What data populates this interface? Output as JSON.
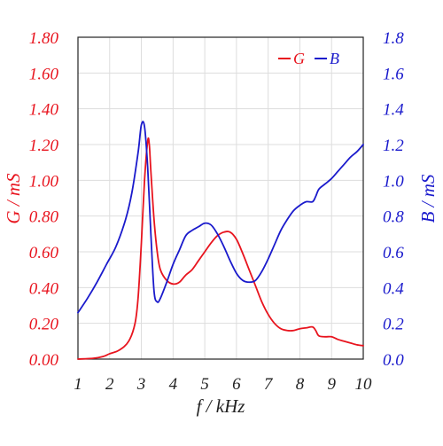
{
  "chart_data": {
    "type": "line",
    "title": "",
    "xlabel": "f / kHz",
    "ylabel_left": "G / mS",
    "ylabel_right": "B / mS",
    "xlim": [
      1,
      10
    ],
    "ylim_left": [
      0,
      1.8
    ],
    "ylim_right": [
      0,
      1.8
    ],
    "grid": true,
    "legend_position": "top-right",
    "x_ticks": [
      "1",
      "2",
      "3",
      "4",
      "5",
      "6",
      "7",
      "8",
      "9",
      "10"
    ],
    "y_left_ticks": [
      "0.00",
      "0.20",
      "0.40",
      "0.60",
      "0.80",
      "1.00",
      "1.20",
      "1.40",
      "1.60",
      "1.80"
    ],
    "y_right_ticks": [
      "0.0",
      "0.2",
      "0.4",
      "0.6",
      "0.8",
      "1.0",
      "1.2",
      "1.4",
      "1.6",
      "1.8"
    ],
    "colors": {
      "G": "#e8141e",
      "B": "#1a1acc",
      "grid": "#dddddd",
      "axis": "#222222"
    },
    "series": [
      {
        "name": "G",
        "axis": "left",
        "x": [
          1.0,
          1.5,
          1.8,
          2.0,
          2.3,
          2.6,
          2.8,
          2.9,
          3.0,
          3.1,
          3.2,
          3.25,
          3.3,
          3.4,
          3.5,
          3.6,
          3.8,
          4.0,
          4.2,
          4.4,
          4.6,
          4.8,
          5.0,
          5.2,
          5.4,
          5.6,
          5.8,
          6.0,
          6.2,
          6.4,
          6.6,
          6.8,
          7.0,
          7.2,
          7.4,
          7.6,
          7.8,
          8.0,
          8.2,
          8.4,
          8.5,
          8.6,
          8.8,
          9.0,
          9.2,
          9.4,
          9.6,
          9.8,
          10.0
        ],
        "y": [
          0.0,
          0.005,
          0.015,
          0.03,
          0.05,
          0.1,
          0.2,
          0.35,
          0.65,
          1.0,
          1.22,
          1.2,
          1.05,
          0.78,
          0.6,
          0.5,
          0.44,
          0.42,
          0.43,
          0.47,
          0.5,
          0.55,
          0.6,
          0.65,
          0.69,
          0.71,
          0.71,
          0.67,
          0.59,
          0.5,
          0.41,
          0.32,
          0.25,
          0.2,
          0.17,
          0.16,
          0.16,
          0.17,
          0.175,
          0.18,
          0.16,
          0.13,
          0.125,
          0.125,
          0.11,
          0.1,
          0.09,
          0.08,
          0.075
        ]
      },
      {
        "name": "B",
        "axis": "right",
        "x": [
          1.0,
          1.3,
          1.6,
          1.9,
          2.2,
          2.5,
          2.7,
          2.9,
          3.0,
          3.1,
          3.2,
          3.3,
          3.4,
          3.5,
          3.6,
          3.8,
          4.0,
          4.2,
          4.4,
          4.6,
          4.8,
          5.0,
          5.2,
          5.4,
          5.6,
          5.8,
          6.0,
          6.2,
          6.4,
          6.6,
          6.8,
          7.0,
          7.2,
          7.4,
          7.6,
          7.8,
          8.0,
          8.2,
          8.4,
          8.5,
          8.6,
          8.8,
          9.0,
          9.2,
          9.4,
          9.6,
          9.8,
          10.0
        ],
        "y": [
          0.26,
          0.34,
          0.43,
          0.53,
          0.63,
          0.78,
          0.93,
          1.16,
          1.31,
          1.3,
          1.07,
          0.7,
          0.38,
          0.32,
          0.34,
          0.43,
          0.53,
          0.61,
          0.69,
          0.72,
          0.74,
          0.76,
          0.75,
          0.7,
          0.63,
          0.55,
          0.48,
          0.44,
          0.43,
          0.44,
          0.49,
          0.56,
          0.64,
          0.72,
          0.78,
          0.83,
          0.86,
          0.88,
          0.88,
          0.91,
          0.95,
          0.98,
          1.01,
          1.05,
          1.09,
          1.13,
          1.16,
          1.2
        ]
      }
    ]
  }
}
